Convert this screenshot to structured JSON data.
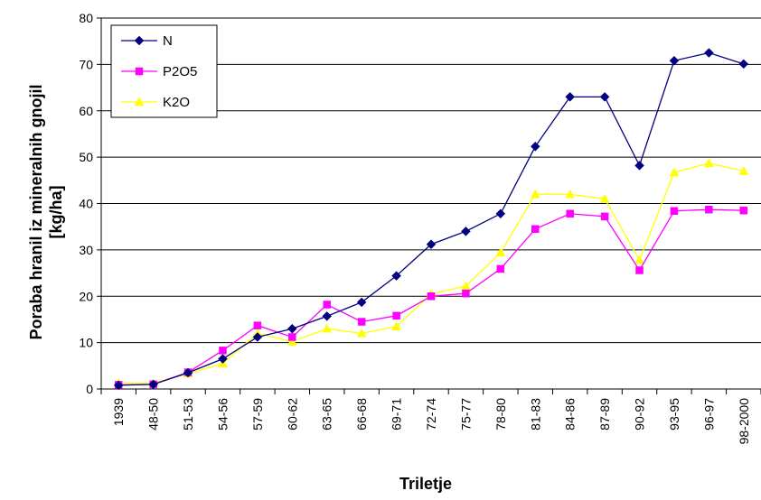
{
  "chart_data": {
    "type": "line",
    "title": "",
    "xlabel": "Triletje",
    "ylabel_line1": "Poraba hranil iz mineralnih gnojil",
    "ylabel_line2": "[kg/ha]",
    "ylim": [
      0,
      80
    ],
    "yticks": [
      0,
      10,
      20,
      30,
      40,
      50,
      60,
      70,
      80
    ],
    "grid": "horizontal",
    "legend_position": "top-left",
    "categories": [
      "1939",
      "48-50",
      "51-53",
      "54-56",
      "57-59",
      "60-62",
      "63-65",
      "66-68",
      "69-71",
      "72-74",
      "75-77",
      "78-80",
      "81-83",
      "84-86",
      "87-89",
      "90-92",
      "93-95",
      "96-97",
      "98-2000"
    ],
    "series": [
      {
        "name": "N",
        "color": "#000080",
        "marker": "diamond",
        "values": [
          0.8,
          1.0,
          3.5,
          6.5,
          11.2,
          13.0,
          15.7,
          18.7,
          24.4,
          31.2,
          34.0,
          37.8,
          52.3,
          63.0,
          63.0,
          48.2,
          70.8,
          72.5,
          70.1
        ]
      },
      {
        "name": "P2O5",
        "color": "#FF00FF",
        "marker": "square",
        "values": [
          0.9,
          1.0,
          3.6,
          8.3,
          13.7,
          11.2,
          18.2,
          14.5,
          15.8,
          20.0,
          20.6,
          25.9,
          34.5,
          37.8,
          37.2,
          25.6,
          38.4,
          38.7,
          38.5
        ]
      },
      {
        "name": "K2O",
        "color": "#FFFF00",
        "marker": "triangle",
        "values": [
          1.3,
          1.3,
          3.3,
          5.5,
          12.0,
          10.2,
          13.0,
          12.0,
          13.5,
          20.5,
          22.2,
          29.4,
          42.0,
          42.0,
          41.0,
          27.8,
          46.7,
          48.7,
          47.0
        ]
      }
    ]
  }
}
